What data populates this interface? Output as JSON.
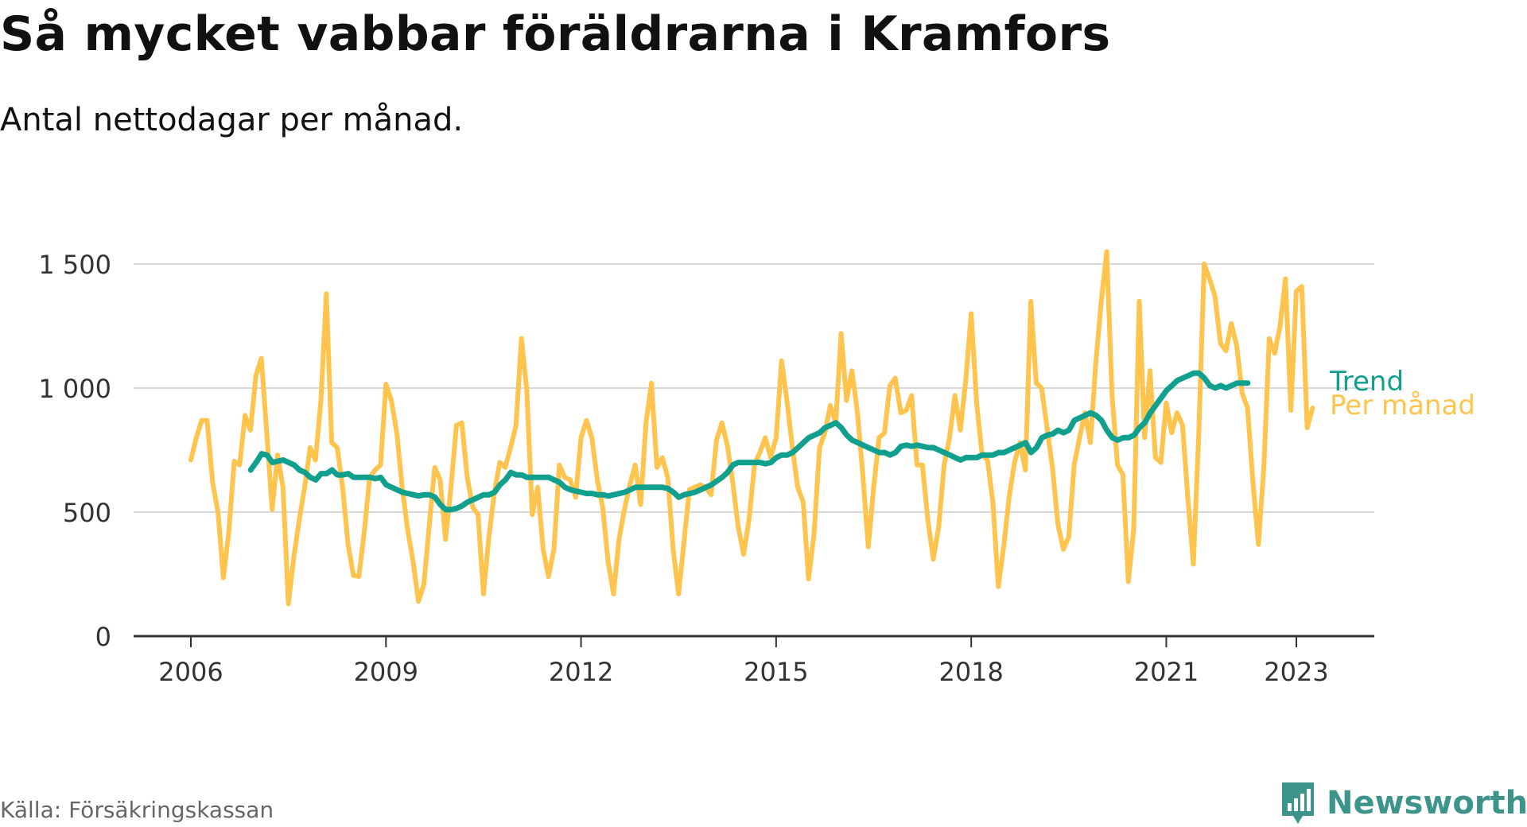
{
  "header": {
    "title": "Så mycket vabbar föräldrarna i Kramfors",
    "subtitle": "Antal nettodagar per månad."
  },
  "footer": {
    "source": "Källa: Försäkringskassan",
    "brand": "Newsworthy"
  },
  "colors": {
    "per_month": "#ffc44d",
    "trend": "#12a08e",
    "grid": "#d9d9d9",
    "axis": "#333333",
    "brand": "#3c948b"
  },
  "chart_data": {
    "type": "line",
    "title": "Så mycket vabbar föräldrarna i Kramfors",
    "subtitle": "Antal nettodagar per månad.",
    "xlim": [
      2006.0,
      2023.6
    ],
    "ylim": [
      0,
      1500
    ],
    "yticks": [
      0,
      500,
      1000,
      1500
    ],
    "ytick_labels": [
      "0",
      "500",
      "1 000",
      "1 500"
    ],
    "xticks": [
      2006,
      2009,
      2012,
      2015,
      2018,
      2021,
      2023
    ],
    "xtick_labels": [
      "2006",
      "2009",
      "2012",
      "2015",
      "2018",
      "2021",
      "2023"
    ],
    "grid": true,
    "legend": "end-of-line labels",
    "series": [
      {
        "name": "Per månad",
        "color": "#ffc44d",
        "x_start": 2006.0,
        "step": 0.08333,
        "values": [
          710,
          800,
          870,
          870,
          620,
          500,
          235,
          420,
          705,
          690,
          890,
          830,
          1050,
          1120,
          820,
          510,
          730,
          600,
          130,
          320,
          470,
          600,
          760,
          710,
          950,
          1380,
          780,
          760,
          600,
          370,
          245,
          240,
          420,
          640,
          670,
          690,
          1015,
          950,
          820,
          600,
          430,
          300,
          140,
          210,
          450,
          680,
          630,
          390,
          600,
          850,
          860,
          640,
          520,
          490,
          170,
          400,
          580,
          700,
          680,
          760,
          850,
          1200,
          990,
          490,
          600,
          350,
          240,
          350,
          690,
          640,
          630,
          560,
          800,
          870,
          800,
          630,
          520,
          300,
          170,
          390,
          510,
          610,
          690,
          530,
          860,
          1020,
          680,
          720,
          640,
          350,
          170,
          380,
          590,
          600,
          610,
          600,
          570,
          790,
          860,
          770,
          620,
          440,
          330,
          470,
          690,
          740,
          800,
          720,
          800,
          1110,
          950,
          760,
          600,
          540,
          230,
          410,
          760,
          820,
          930,
          860,
          1220,
          950,
          1070,
          900,
          650,
          360,
          600,
          800,
          820,
          1010,
          1040,
          900,
          910,
          970,
          690,
          690,
          470,
          310,
          440,
          690,
          800,
          970,
          830,
          1030,
          1300,
          940,
          730,
          710,
          540,
          200,
          360,
          560,
          700,
          780,
          670,
          1350,
          1020,
          1000,
          840,
          680,
          450,
          350,
          400,
          690,
          800,
          900,
          780,
          1100,
          1350,
          1550,
          970,
          690,
          650,
          220,
          430,
          1350,
          800,
          1070,
          720,
          700,
          940,
          820,
          900,
          850,
          550,
          290,
          820,
          1500,
          1440,
          1370,
          1180,
          1150,
          1260,
          1170,
          980,
          920,
          620,
          370,
          680,
          1200,
          1140,
          1250,
          1440,
          910,
          1390,
          1410,
          840,
          920
        ]
      },
      {
        "name": "Trend",
        "color": "#12a08e",
        "x_start": 2006.92,
        "step": 0.08333,
        "values": [
          670,
          700,
          735,
          730,
          700,
          705,
          710,
          700,
          690,
          670,
          660,
          640,
          630,
          655,
          655,
          670,
          650,
          650,
          655,
          640,
          640,
          640,
          640,
          635,
          640,
          610,
          600,
          590,
          580,
          575,
          570,
          565,
          570,
          570,
          560,
          530,
          510,
          510,
          515,
          525,
          540,
          550,
          560,
          570,
          570,
          580,
          610,
          630,
          660,
          650,
          650,
          640,
          640,
          640,
          640,
          640,
          630,
          620,
          600,
          590,
          585,
          580,
          575,
          575,
          570,
          570,
          565,
          570,
          575,
          580,
          590,
          600,
          600,
          600,
          600,
          600,
          600,
          595,
          580,
          560,
          570,
          575,
          580,
          590,
          600,
          610,
          625,
          640,
          660,
          690,
          700,
          700,
          700,
          700,
          700,
          695,
          700,
          720,
          730,
          730,
          740,
          760,
          780,
          800,
          810,
          820,
          840,
          850,
          860,
          840,
          810,
          790,
          780,
          770,
          760,
          750,
          740,
          740,
          730,
          740,
          765,
          770,
          765,
          770,
          765,
          760,
          760,
          750,
          740,
          730,
          720,
          710,
          720,
          720,
          720,
          730,
          730,
          730,
          740,
          740,
          750,
          760,
          770,
          780,
          740,
          760,
          800,
          810,
          815,
          830,
          820,
          830,
          870,
          880,
          890,
          900,
          890,
          870,
          830,
          800,
          790,
          800,
          800,
          810,
          840,
          860,
          900,
          930,
          960,
          990,
          1010,
          1030,
          1040,
          1050,
          1060,
          1060,
          1040,
          1010,
          1000,
          1010,
          1000,
          1010,
          1020,
          1020,
          1020
        ]
      }
    ],
    "series_label_per_month": "Per månad",
    "series_label_trend": "Trend"
  }
}
